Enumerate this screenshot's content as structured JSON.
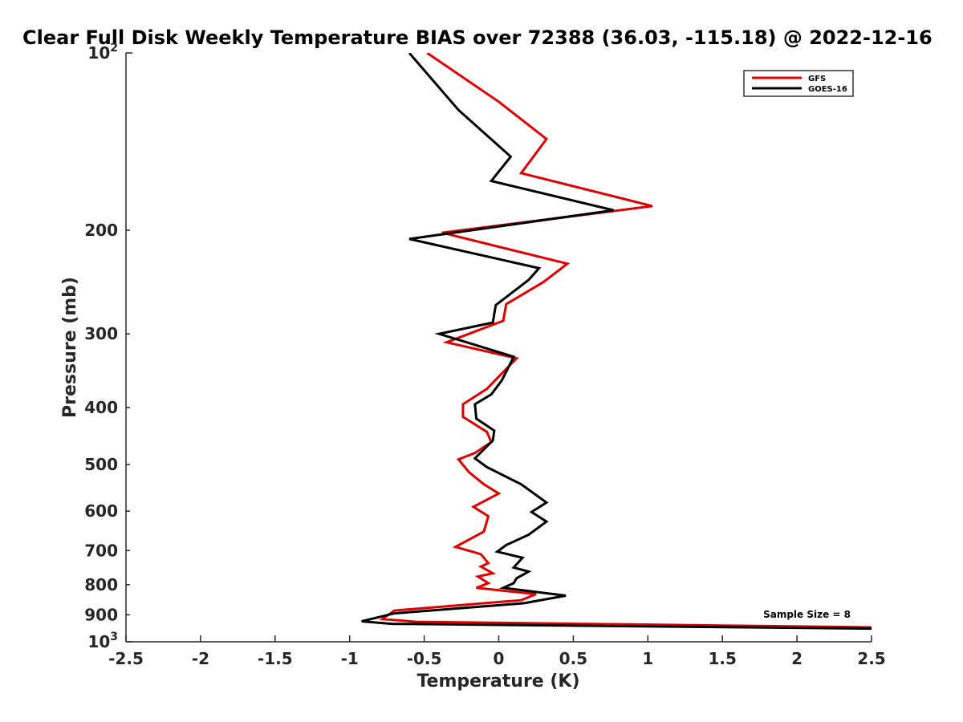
{
  "chart_data": {
    "type": "line",
    "title": "Clear Full Disk Weekly Temperature BIAS over 72388 (36.03, -115.18) @ 2022-12-16",
    "xlabel": "Temperature (K)",
    "ylabel": "Pressure (mb)",
    "xlim": [
      -2.5,
      2.5
    ],
    "ylim": [
      100,
      1000
    ],
    "y_scale": "log",
    "y_reversed": true,
    "grid": false,
    "legend_position": "top-right",
    "x_ticks": [
      -2.5,
      -2,
      -1.5,
      -1,
      -0.5,
      0,
      0.5,
      1,
      1.5,
      2,
      2.5
    ],
    "x_tick_labels": [
      "-2.5",
      "-2",
      "-1.5",
      "-1",
      "-0.5",
      "0",
      "0.5",
      "1",
      "1.5",
      "2",
      "2.5"
    ],
    "y_ticks": [
      200,
      300,
      400,
      500,
      600,
      700,
      800,
      900
    ],
    "y_tick_labels": [
      "200",
      "300",
      "400",
      "500",
      "600",
      "700",
      "800",
      "900"
    ],
    "y_top_label": {
      "base": "10",
      "exp": "2"
    },
    "y_bottom_label": {
      "base": "10",
      "exp": "3"
    },
    "annotation": "Sample Size = 8",
    "series": [
      {
        "name": "GFS",
        "color": "#e00000",
        "points": [
          [
            -0.48,
            100
          ],
          [
            0,
            121
          ],
          [
            0.32,
            140
          ],
          [
            0.15,
            160
          ],
          [
            1.03,
            182
          ],
          [
            -0.38,
            202
          ],
          [
            0.46,
            228
          ],
          [
            0.3,
            245
          ],
          [
            0.05,
            267
          ],
          [
            0.03,
            285
          ],
          [
            -0.35,
            310
          ],
          [
            0.12,
            330
          ],
          [
            -0.08,
            372
          ],
          [
            -0.24,
            395
          ],
          [
            -0.24,
            415
          ],
          [
            -0.08,
            440
          ],
          [
            -0.05,
            458
          ],
          [
            -0.16,
            478
          ],
          [
            -0.27,
            490
          ],
          [
            -0.2,
            515
          ],
          [
            -0.1,
            540
          ],
          [
            0,
            560
          ],
          [
            -0.17,
            590
          ],
          [
            -0.07,
            612
          ],
          [
            -0.1,
            650
          ],
          [
            -0.29,
            690
          ],
          [
            -0.12,
            710
          ],
          [
            -0.07,
            735
          ],
          [
            -0.12,
            745
          ],
          [
            -0.04,
            765
          ],
          [
            -0.14,
            775
          ],
          [
            -0.07,
            795
          ],
          [
            -0.15,
            810
          ],
          [
            0.25,
            830
          ],
          [
            0.15,
            850
          ],
          [
            -0.7,
            885
          ],
          [
            -0.78,
            915
          ],
          [
            -0.55,
            925
          ],
          [
            2.5,
            945
          ]
        ]
      },
      {
        "name": "GOES-16",
        "color": "#000000",
        "points": [
          [
            -0.6,
            100
          ],
          [
            -0.27,
            125
          ],
          [
            0.08,
            150
          ],
          [
            -0.05,
            165
          ],
          [
            0.77,
            185
          ],
          [
            -0.6,
            207
          ],
          [
            0.27,
            232
          ],
          [
            0.2,
            243
          ],
          [
            -0.02,
            268
          ],
          [
            -0.04,
            287
          ],
          [
            -0.4,
            300
          ],
          [
            0.1,
            328
          ],
          [
            0.07,
            340
          ],
          [
            0.02,
            360
          ],
          [
            -0.05,
            380
          ],
          [
            -0.16,
            395
          ],
          [
            -0.15,
            418
          ],
          [
            -0.03,
            438
          ],
          [
            -0.04,
            455
          ],
          [
            -0.16,
            488
          ],
          [
            -0.08,
            505
          ],
          [
            0.15,
            540
          ],
          [
            0.32,
            580
          ],
          [
            0.22,
            602
          ],
          [
            0.32,
            625
          ],
          [
            0.2,
            658
          ],
          [
            0.05,
            685
          ],
          [
            -0.01,
            703
          ],
          [
            0.16,
            720
          ],
          [
            0.1,
            748
          ],
          [
            0.2,
            760
          ],
          [
            0.12,
            780
          ],
          [
            0.1,
            795
          ],
          [
            0.03,
            810
          ],
          [
            0.45,
            835
          ],
          [
            0.17,
            860
          ],
          [
            -0.7,
            895
          ],
          [
            -0.92,
            923
          ],
          [
            -0.72,
            932
          ],
          [
            2.5,
            950
          ]
        ]
      }
    ]
  }
}
